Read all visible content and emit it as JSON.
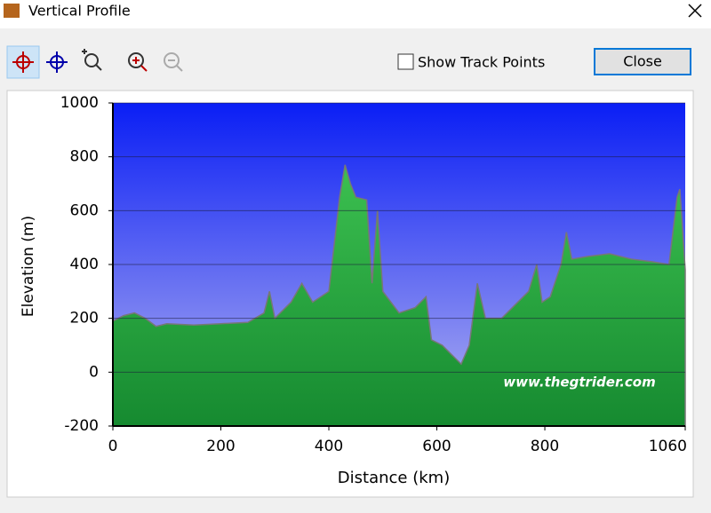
{
  "window": {
    "title": "Vertical Profile",
    "checkbox_label": "Show Track Points",
    "button": "Close"
  },
  "chart_data": {
    "type": "area",
    "xlabel": "Distance (km)",
    "ylabel": "Elevation (m)",
    "annotation": "www.thegtrider.com",
    "x": [
      0,
      20,
      40,
      60,
      80,
      100,
      150,
      200,
      250,
      280,
      290,
      300,
      330,
      350,
      370,
      400,
      420,
      430,
      440,
      450,
      470,
      480,
      490,
      500,
      530,
      560,
      580,
      590,
      610,
      630,
      645,
      660,
      675,
      690,
      720,
      750,
      770,
      785,
      795,
      810,
      830,
      840,
      850,
      880,
      920,
      960,
      1000,
      1030,
      1045,
      1050,
      1060
    ],
    "series": [
      {
        "name": "Elevation",
        "color": "#1e9e3c",
        "values": [
          190,
          210,
          220,
          200,
          170,
          180,
          175,
          180,
          185,
          220,
          300,
          200,
          260,
          330,
          260,
          300,
          650,
          770,
          700,
          650,
          640,
          330,
          600,
          300,
          220,
          240,
          280,
          120,
          100,
          60,
          30,
          100,
          330,
          200,
          200,
          260,
          300,
          400,
          260,
          280,
          400,
          520,
          420,
          430,
          440,
          420,
          410,
          400,
          650,
          680,
          380
        ]
      }
    ],
    "xlim": [
      0,
      1060
    ],
    "xticks": [
      0,
      200,
      400,
      600,
      800,
      1060
    ],
    "ylim": [
      -200,
      1000
    ],
    "yticks": [
      -200,
      0,
      200,
      400,
      600,
      800,
      1000
    ],
    "grid": true
  }
}
